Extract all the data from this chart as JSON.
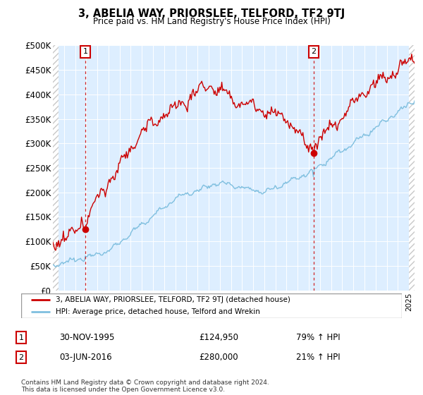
{
  "title": "3, ABELIA WAY, PRIORSLEE, TELFORD, TF2 9TJ",
  "subtitle": "Price paid vs. HM Land Registry's House Price Index (HPI)",
  "ylim": [
    0,
    500000
  ],
  "yticks": [
    0,
    50000,
    100000,
    150000,
    200000,
    250000,
    300000,
    350000,
    400000,
    450000,
    500000
  ],
  "ytick_labels": [
    "£0",
    "£50K",
    "£100K",
    "£150K",
    "£200K",
    "£250K",
    "£300K",
    "£350K",
    "£400K",
    "£450K",
    "£500K"
  ],
  "xlim_start": 1993.0,
  "xlim_end": 2025.5,
  "hpi_color": "#7fbfdf",
  "price_color": "#cc0000",
  "sale1_date": 1995.92,
  "sale1_price": 124950,
  "sale2_date": 2016.45,
  "sale2_price": 280000,
  "legend_line1": "3, ABELIA WAY, PRIORSLEE, TELFORD, TF2 9TJ (detached house)",
  "legend_line2": "HPI: Average price, detached house, Telford and Wrekin",
  "annotation1_num": "1",
  "annotation1_date": "30-NOV-1995",
  "annotation1_price": "£124,950",
  "annotation1_hpi": "79% ↑ HPI",
  "annotation2_num": "2",
  "annotation2_date": "03-JUN-2016",
  "annotation2_price": "£280,000",
  "annotation2_hpi": "21% ↑ HPI",
  "footer": "Contains HM Land Registry data © Crown copyright and database right 2024.\nThis data is licensed under the Open Government Licence v3.0.",
  "plot_bg_color": "#ddeeff",
  "grid_color": "#ffffff",
  "hatch_color": "#c8c8c8"
}
